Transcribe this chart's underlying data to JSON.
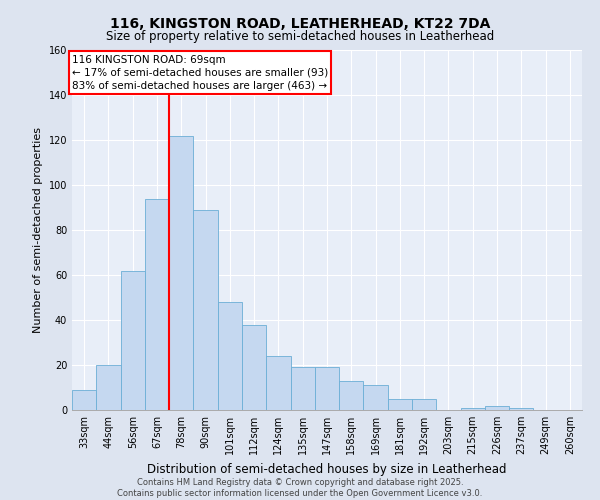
{
  "title": "116, KINGSTON ROAD, LEATHERHEAD, KT22 7DA",
  "subtitle": "Size of property relative to semi-detached houses in Leatherhead",
  "xlabel": "Distribution of semi-detached houses by size in Leatherhead",
  "ylabel": "Number of semi-detached properties",
  "categories": [
    "33sqm",
    "44sqm",
    "56sqm",
    "67sqm",
    "78sqm",
    "90sqm",
    "101sqm",
    "112sqm",
    "124sqm",
    "135sqm",
    "147sqm",
    "158sqm",
    "169sqm",
    "181sqm",
    "192sqm",
    "203sqm",
    "215sqm",
    "226sqm",
    "237sqm",
    "249sqm",
    "260sqm"
  ],
  "values": [
    9,
    20,
    62,
    94,
    122,
    89,
    48,
    38,
    24,
    19,
    19,
    13,
    11,
    5,
    5,
    0,
    1,
    2,
    1,
    0,
    0
  ],
  "bar_color": "#c5d8f0",
  "bar_edge_color": "#6baed6",
  "vline_x_index": 4,
  "vline_color": "red",
  "annotation_text": "116 KINGSTON ROAD: 69sqm\n← 17% of semi-detached houses are smaller (93)\n83% of semi-detached houses are larger (463) →",
  "annotation_box_color": "white",
  "annotation_box_edge_color": "red",
  "ylim": [
    0,
    160
  ],
  "yticks": [
    0,
    20,
    40,
    60,
    80,
    100,
    120,
    140,
    160
  ],
  "background_color": "#dde4f0",
  "plot_bg_color": "#e8eef8",
  "footer_line1": "Contains HM Land Registry data © Crown copyright and database right 2025.",
  "footer_line2": "Contains public sector information licensed under the Open Government Licence v3.0.",
  "title_fontsize": 10,
  "subtitle_fontsize": 8.5,
  "xlabel_fontsize": 8.5,
  "ylabel_fontsize": 8,
  "tick_fontsize": 7,
  "footer_fontsize": 6,
  "annotation_fontsize": 7.5
}
